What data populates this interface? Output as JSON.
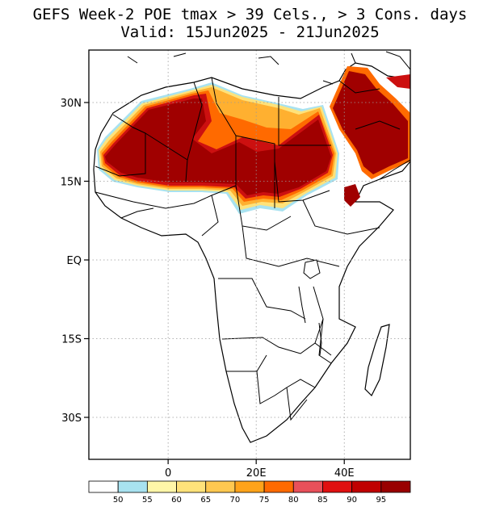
{
  "title": {
    "line1": "GEFS Week-2 POE tmax > 39 Cels., > 3 Cons. days",
    "line2": "Valid: 15Jun2025 - 21Jun2025"
  },
  "map": {
    "lon_range": [
      -18,
      55
    ],
    "lat_range": [
      -38,
      40
    ],
    "lat_ticks": [
      {
        "value": 30,
        "label": "30N"
      },
      {
        "value": 15,
        "label": "15N"
      },
      {
        "value": 0,
        "label": "EQ"
      },
      {
        "value": -15,
        "label": "15S"
      },
      {
        "value": -30,
        "label": "30S"
      }
    ],
    "lon_ticks": [
      {
        "value": 0,
        "label": "0"
      },
      {
        "value": 20,
        "label": "20E"
      },
      {
        "value": 40,
        "label": "40E"
      }
    ]
  },
  "colorbar": {
    "colors": [
      "#ffffff",
      "#a8e2f0",
      "#fff6a8",
      "#ffe27a",
      "#ffc850",
      "#ffa31a",
      "#ff6a00",
      "#e8505a",
      "#e01010",
      "#c00000",
      "#990000"
    ],
    "labels": [
      "50",
      "55",
      "60",
      "65",
      "70",
      "75",
      "80",
      "85",
      "90",
      "95"
    ]
  },
  "shading_colors": {
    "p95": "#a00000",
    "p90": "#cc1010",
    "p80": "#ff6a00",
    "p70": "#ffb030",
    "p60": "#ffe27a",
    "p50": "#a8e2f0"
  }
}
